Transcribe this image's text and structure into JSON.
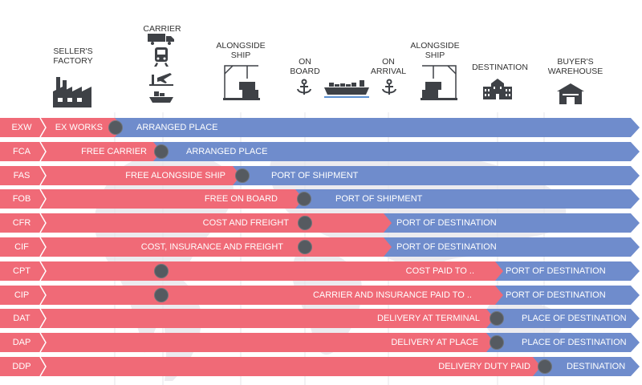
{
  "header": {
    "sellers_factory": [
      "SELLER'S",
      "FACTORY"
    ],
    "carrier": [
      "CARRIER"
    ],
    "alongside_ship_1": [
      "ALONGSIDE",
      "SHIP"
    ],
    "on_board": [
      "ON",
      "BOARD"
    ],
    "on_arrival": [
      "ON",
      "ARRIVAL"
    ],
    "alongside_ship_2": [
      "ALONGSIDE",
      "SHIP"
    ],
    "destination": [
      "DESTINATION"
    ],
    "buyers_warehouse": [
      "BUYER'S",
      "WAREHOUSE"
    ]
  },
  "icons": [
    "factory-icon",
    "truck-icon",
    "train-icon",
    "airplane-icon",
    "small-ship-icon",
    "crane-container-icon",
    "anchor-icon",
    "cargo-ship-icon",
    "anchor-icon",
    "crane-container-icon",
    "building-icon",
    "warehouse-icon"
  ],
  "colors": {
    "seller": "#f06a77",
    "buyer": "#6f8ccc",
    "dot": "#555a60",
    "map": "#e9e9ec"
  },
  "rows": [
    {
      "code": "EXW",
      "seller_text": "EX WORKS",
      "buyer_text": "ARRANGED PLACE"
    },
    {
      "code": "FCA",
      "seller_text": "FREE CARRIER",
      "buyer_text": "ARRANGED PLACE"
    },
    {
      "code": "FAS",
      "seller_text": "FREE ALONGSIDE SHIP",
      "buyer_text": "PORT OF SHIPMENT"
    },
    {
      "code": "FOB",
      "seller_text": "FREE ON BOARD",
      "buyer_text": "PORT OF SHIPMENT"
    },
    {
      "code": "CFR",
      "seller_text": "COST AND FREIGHT",
      "buyer_text": "PORT OF DESTINATION"
    },
    {
      "code": "CIF",
      "seller_text": "COST, INSURANCE AND FREIGHT",
      "buyer_text": "PORT OF DESTINATION"
    },
    {
      "code": "CPT",
      "seller_text": "COST PAID TO ..",
      "buyer_text": "PORT OF DESTINATION"
    },
    {
      "code": "CIP",
      "seller_text": "CARRIER AND INSURANCE PAID TO ..",
      "buyer_text": "PORT OF DESTINATION"
    },
    {
      "code": "DAT",
      "seller_text": "DELIVERY AT TERMINAL",
      "buyer_text": "PLACE OF DESTINATION"
    },
    {
      "code": "DAP",
      "seller_text": "DELIVERY AT PLACE",
      "buyer_text": "PLACE OF DESTINATION"
    },
    {
      "code": "DDP",
      "seller_text": "DELIVERY DUTY PAID",
      "buyer_text": "DESTINATION"
    }
  ]
}
